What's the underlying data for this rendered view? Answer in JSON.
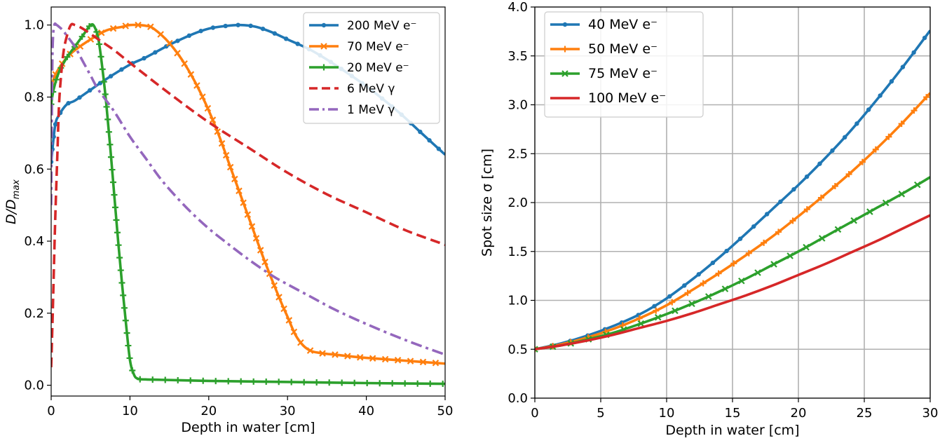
{
  "colors": {
    "blue": "#1f77b4",
    "orange": "#ff7f0e",
    "green": "#2ca02c",
    "red": "#d62728",
    "purple": "#9467bd",
    "grid": "#b0b0b0",
    "legend_border": "#cccccc"
  },
  "chart_data": [
    {
      "type": "line",
      "title": "",
      "xlabel": "Depth in water [cm]",
      "ylabel": "D/D_max",
      "ylabel_main": "D/D",
      "ylabel_sub": "max",
      "xlim": [
        0,
        50
      ],
      "ylim": [
        -0.03,
        1.05
      ],
      "xticks": [
        0,
        10,
        20,
        30,
        40,
        50
      ],
      "yticks": [
        0.0,
        0.2,
        0.4,
        0.6,
        0.8,
        1.0
      ],
      "xtick_labels": [
        "0",
        "10",
        "20",
        "30",
        "40",
        "50"
      ],
      "ytick_labels": [
        "0.0",
        "0.2",
        "0.4",
        "0.6",
        "0.8",
        "1.0"
      ],
      "grid": false,
      "legend_position": "top-right",
      "series": [
        {
          "name": "200 MeV e⁻",
          "color": "blue",
          "style": "solid",
          "marker": "dot",
          "x": [
            0,
            0.5,
            1,
            2,
            3,
            5,
            7,
            10,
            12,
            15,
            18,
            20,
            22,
            24,
            26,
            28,
            30,
            33,
            36,
            40,
            44,
            47,
            50
          ],
          "y": [
            0.62,
            0.72,
            0.75,
            0.78,
            0.79,
            0.82,
            0.85,
            0.89,
            0.91,
            0.945,
            0.975,
            0.99,
            0.997,
            1.0,
            0.995,
            0.98,
            0.96,
            0.93,
            0.89,
            0.83,
            0.76,
            0.7,
            0.64
          ]
        },
        {
          "name": "70 MeV e⁻",
          "color": "orange",
          "style": "solid",
          "marker": "x",
          "x": [
            0,
            0.5,
            1,
            2,
            3,
            5,
            7,
            9,
            10,
            11,
            12,
            13,
            15,
            17,
            19,
            21,
            23,
            25,
            27,
            29,
            30,
            31,
            32,
            33,
            34,
            35,
            36,
            38,
            40,
            45,
            50
          ],
          "y": [
            0.83,
            0.86,
            0.88,
            0.91,
            0.93,
            0.96,
            0.985,
            0.995,
            1.0,
            1.0,
            0.998,
            0.99,
            0.95,
            0.89,
            0.81,
            0.71,
            0.59,
            0.47,
            0.35,
            0.24,
            0.19,
            0.14,
            0.11,
            0.095,
            0.09,
            0.087,
            0.085,
            0.08,
            0.076,
            0.068,
            0.06
          ]
        },
        {
          "name": "20 MeV e⁻",
          "color": "green",
          "style": "solid",
          "marker": "plus",
          "x": [
            0,
            0.3,
            1,
            2,
            3,
            4,
            5,
            5.5,
            6,
            6.5,
            7,
            7.5,
            8,
            8.5,
            9,
            9.5,
            10,
            10.5,
            11,
            12,
            14,
            20,
            30,
            40,
            50
          ],
          "y": [
            0.78,
            0.82,
            0.87,
            0.91,
            0.94,
            0.97,
            1.0,
            0.995,
            0.96,
            0.88,
            0.78,
            0.66,
            0.53,
            0.4,
            0.28,
            0.17,
            0.07,
            0.03,
            0.018,
            0.016,
            0.015,
            0.012,
            0.009,
            0.006,
            0.004
          ]
        },
        {
          "name": "6 MeV γ",
          "color": "red",
          "style": "dashed",
          "marker": "none",
          "x": [
            0,
            0.2,
            0.5,
            0.8,
            1.0,
            1.3,
            1.6,
            2.0,
            2.5,
            3,
            4,
            6,
            8,
            10,
            15,
            20,
            25,
            30,
            35,
            40,
            45,
            50
          ],
          "y": [
            0.05,
            0.2,
            0.45,
            0.65,
            0.78,
            0.87,
            0.93,
            0.97,
            1.0,
            1.0,
            0.99,
            0.96,
            0.93,
            0.895,
            0.81,
            0.73,
            0.66,
            0.59,
            0.53,
            0.48,
            0.43,
            0.39
          ]
        },
        {
          "name": "1 MeV γ",
          "color": "purple",
          "style": "dashdot",
          "marker": "none",
          "x": [
            0,
            0.1,
            0.2,
            0.4,
            0.7,
            1.0,
            1.5,
            2,
            3,
            4,
            5,
            6,
            8,
            10,
            12,
            14,
            16,
            18,
            20,
            22,
            25,
            28,
            30,
            33,
            36,
            40,
            45,
            50
          ],
          "y": [
            0.5,
            0.8,
            0.95,
            1.0,
            1.0,
            0.995,
            0.985,
            0.97,
            0.94,
            0.9,
            0.86,
            0.82,
            0.76,
            0.69,
            0.63,
            0.57,
            0.52,
            0.475,
            0.435,
            0.4,
            0.35,
            0.305,
            0.28,
            0.245,
            0.21,
            0.17,
            0.125,
            0.085
          ]
        }
      ]
    },
    {
      "type": "line",
      "title": "",
      "xlabel": "Depth in water [cm]",
      "ylabel": "Spot size σ [cm]",
      "xlim": [
        0,
        30
      ],
      "ylim": [
        0,
        4
      ],
      "xticks": [
        0,
        5,
        10,
        15,
        20,
        25,
        30
      ],
      "yticks": [
        0.0,
        0.5,
        1.0,
        1.5,
        2.0,
        2.5,
        3.0,
        3.5,
        4.0
      ],
      "xtick_labels": [
        "0",
        "5",
        "10",
        "15",
        "20",
        "25",
        "30"
      ],
      "ytick_labels": [
        "0.0",
        "0.5",
        "1.0",
        "1.5",
        "2.0",
        "2.5",
        "3.0",
        "3.5",
        "4.0"
      ],
      "grid": true,
      "legend_position": "top-left",
      "series": [
        {
          "name": "40 MeV e⁻",
          "color": "blue",
          "style": "solid",
          "marker": "dot",
          "x": [
            0,
            2,
            4,
            6,
            8,
            10,
            12,
            14,
            16,
            18,
            20,
            22,
            24,
            26,
            28,
            30
          ],
          "y": [
            0.5,
            0.56,
            0.64,
            0.74,
            0.86,
            1.02,
            1.22,
            1.44,
            1.68,
            1.93,
            2.18,
            2.45,
            2.74,
            3.06,
            3.4,
            3.76
          ]
        },
        {
          "name": "50 MeV e⁻",
          "color": "orange",
          "style": "solid",
          "marker": "plus",
          "x": [
            0,
            2,
            4,
            6,
            8,
            10,
            12,
            14,
            16,
            18,
            20,
            22,
            24,
            26,
            28,
            30
          ],
          "y": [
            0.5,
            0.55,
            0.62,
            0.71,
            0.82,
            0.95,
            1.11,
            1.28,
            1.46,
            1.65,
            1.86,
            2.08,
            2.31,
            2.56,
            2.83,
            3.12
          ]
        },
        {
          "name": "75 MeV e⁻",
          "color": "green",
          "style": "solid",
          "marker": "x",
          "x": [
            0,
            2,
            4,
            6,
            8,
            10,
            12,
            14,
            16,
            18,
            20,
            22,
            24,
            26,
            28,
            30
          ],
          "y": [
            0.5,
            0.54,
            0.6,
            0.67,
            0.76,
            0.86,
            0.97,
            1.09,
            1.22,
            1.36,
            1.5,
            1.65,
            1.8,
            1.95,
            2.1,
            2.26
          ]
        },
        {
          "name": "100 MeV e⁻",
          "color": "red",
          "style": "solid",
          "marker": "none",
          "x": [
            0,
            2,
            4,
            6,
            8,
            10,
            12,
            14,
            16,
            18,
            20,
            22,
            24,
            26,
            28,
            30
          ],
          "y": [
            0.5,
            0.54,
            0.59,
            0.65,
            0.72,
            0.79,
            0.87,
            0.96,
            1.05,
            1.15,
            1.26,
            1.37,
            1.49,
            1.61,
            1.74,
            1.87
          ]
        }
      ]
    }
  ]
}
